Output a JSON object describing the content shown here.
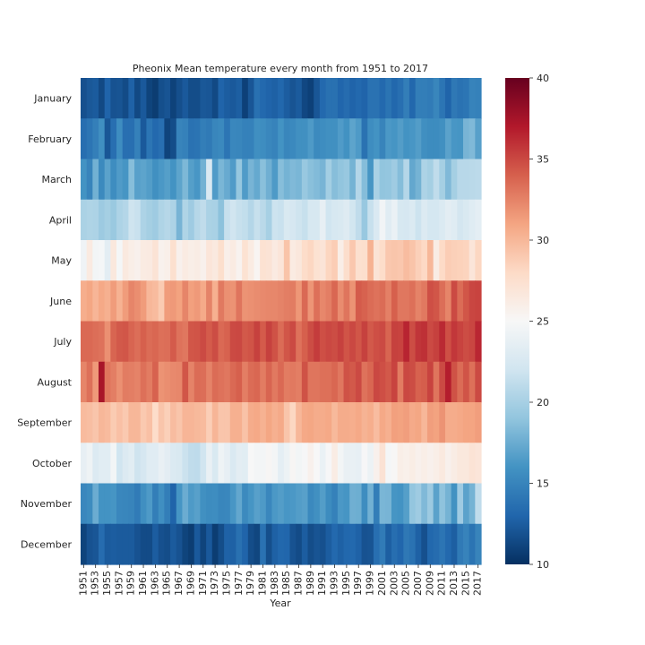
{
  "chart_data": {
    "type": "heatmap",
    "title": "Pheonix Mean temperature every month from 1951 to 2017",
    "xlabel": "Year",
    "ylabel": "",
    "rows": [
      "January",
      "February",
      "March",
      "April",
      "May",
      "June",
      "July",
      "August",
      "September",
      "October",
      "November",
      "December"
    ],
    "x_start": 1951,
    "x_end": 2017,
    "x_tick_step": 2,
    "colorbar": {
      "min": 10,
      "max": 40,
      "ticks": [
        10,
        15,
        20,
        25,
        30,
        35,
        40
      ],
      "colormap": "RdBu_r"
    },
    "approx_monthly_means": [
      11.5,
      14.5,
      17.5,
      21.5,
      26.5,
      31.5,
      34.5,
      33.5,
      29.5,
      24.0,
      16.0,
      11.5
    ],
    "series": [
      {
        "name": "January",
        "values": [
          11.8,
          12.2,
          12.4,
          11.4,
          12.9,
          11.9,
          12.0,
          11.5,
          12.8,
          11.4,
          12.3,
          11.1,
          10.7,
          11.7,
          12.0,
          11.0,
          11.7,
          12.3,
          11.6,
          11.6,
          12.2,
          12.1,
          11.4,
          12.9,
          12.5,
          12.3,
          12.6,
          10.9,
          12.1,
          13.7,
          13.2,
          12.9,
          12.7,
          13.1,
          12.5,
          12.0,
          12.4,
          11.3,
          10.9,
          12.1,
          13.2,
          13.7,
          13.7,
          13.0,
          13.4,
          12.9,
          13.2,
          12.9,
          13.8,
          13.8,
          13.2,
          13.9,
          13.1,
          13.6,
          14.6,
          13.1,
          14.6,
          14.6,
          14.4,
          15.1,
          14.0,
          12.9,
          14.2,
          13.8,
          14.0,
          14.9,
          14.8
        ]
      },
      {
        "name": "February",
        "values": [
          13.5,
          14.0,
          14.7,
          15.7,
          12.1,
          13.6,
          15.6,
          13.6,
          13.6,
          14.8,
          12.3,
          14.0,
          13.2,
          13.6,
          11.1,
          11.6,
          15.0,
          14.8,
          13.8,
          13.9,
          14.6,
          14.3,
          15.1,
          15.3,
          14.0,
          15.2,
          15.1,
          14.8,
          14.8,
          15.7,
          15.6,
          15.2,
          14.9,
          16.0,
          15.1,
          15.3,
          15.8,
          15.8,
          16.4,
          15.4,
          15.6,
          15.8,
          15.8,
          16.5,
          15.9,
          17.0,
          16.4,
          13.8,
          15.6,
          16.0,
          15.0,
          16.3,
          16.1,
          16.6,
          16.0,
          16.2,
          16.6,
          15.7,
          15.5,
          15.5,
          15.8,
          16.9,
          16.2,
          16.1,
          18.0,
          18.3,
          16.8
        ]
      },
      {
        "name": "March",
        "values": [
          16.0,
          15.0,
          17.8,
          15.4,
          16.9,
          15.6,
          16.5,
          16.1,
          18.6,
          16.8,
          17.0,
          16.6,
          15.8,
          16.3,
          16.7,
          16.0,
          17.0,
          18.2,
          16.7,
          16.2,
          17.8,
          22.7,
          16.5,
          18.1,
          17.4,
          16.5,
          19.2,
          16.5,
          18.0,
          17.3,
          18.7,
          17.7,
          16.4,
          18.6,
          17.9,
          18.3,
          18.1,
          19.3,
          18.7,
          18.4,
          18.0,
          19.8,
          18.6,
          19.0,
          19.3,
          17.9,
          20.6,
          18.5,
          16.1,
          20.1,
          19.0,
          19.1,
          19.6,
          18.5,
          20.6,
          17.2,
          17.9,
          20.3,
          19.9,
          21.2,
          19.9,
          18.3,
          19.9,
          20.8,
          20.8,
          20.9,
          21.0
        ]
      },
      {
        "name": "April",
        "values": [
          20.2,
          20.4,
          20.3,
          19.5,
          19.9,
          19.4,
          20.3,
          20.6,
          21.9,
          21.6,
          20.3,
          19.9,
          19.6,
          20.4,
          20.7,
          20.3,
          18.0,
          20.4,
          19.6,
          20.7,
          21.2,
          20.2,
          20.1,
          18.8,
          21.5,
          22.0,
          21.5,
          21.3,
          20.6,
          21.5,
          20.9,
          20.0,
          21.8,
          21.6,
          22.6,
          22.4,
          21.9,
          21.5,
          22.5,
          22.5,
          23.7,
          22.0,
          22.5,
          22.6,
          23.0,
          22.1,
          21.2,
          19.3,
          21.5,
          22.7,
          24.5,
          23.2,
          24.0,
          22.5,
          22.4,
          22.8,
          21.8,
          22.9,
          22.3,
          22.3,
          22.8,
          23.4,
          23.1,
          22.2,
          22.6,
          23.1,
          23.5
        ]
      },
      {
        "name": "May",
        "values": [
          24.4,
          26.4,
          24.6,
          24.8,
          23.4,
          26.6,
          24.8,
          26.5,
          26.0,
          25.7,
          26.3,
          26.4,
          27.1,
          25.6,
          25.9,
          27.5,
          25.7,
          26.3,
          26.0,
          26.2,
          25.7,
          26.9,
          26.5,
          27.6,
          25.9,
          26.3,
          25.5,
          27.3,
          26.3,
          25.3,
          27.3,
          27.1,
          26.4,
          26.9,
          29.3,
          26.3,
          26.7,
          27.8,
          28.2,
          27.3,
          27.0,
          28.3,
          28.8,
          26.0,
          27.7,
          29.1,
          27.5,
          27.6,
          30.3,
          27.1,
          27.8,
          29.1,
          29.2,
          29.1,
          29.7,
          29.3,
          28.6,
          28.1,
          30.0,
          26.2,
          28.0,
          28.8,
          28.6,
          28.5,
          28.4,
          26.9,
          28.2
        ]
      },
      {
        "name": "June",
        "values": [
          30.5,
          30.9,
          30.1,
          30.8,
          30.4,
          31.4,
          30.3,
          31.4,
          32.4,
          32.0,
          31.4,
          30.0,
          29.8,
          28.9,
          31.4,
          31.5,
          31.1,
          32.4,
          31.2,
          31.5,
          30.7,
          32.5,
          30.4,
          32.9,
          31.9,
          31.8,
          33.1,
          31.8,
          31.9,
          32.1,
          32.2,
          32.3,
          32.3,
          32.5,
          32.7,
          32.8,
          31.6,
          33.6,
          31.7,
          33.3,
          32.3,
          32.7,
          33.7,
          32.1,
          33.1,
          31.8,
          34.2,
          33.9,
          33.5,
          33.2,
          33.5,
          32.6,
          34.0,
          33.0,
          33.0,
          33.3,
          32.5,
          32.9,
          34.7,
          34.4,
          33.4,
          32.4,
          34.9,
          33.5,
          34.4,
          35.1,
          35.2
        ]
      },
      {
        "name": "July",
        "values": [
          33.6,
          33.6,
          33.4,
          33.2,
          31.9,
          33.8,
          34.3,
          34.4,
          33.8,
          33.4,
          34.0,
          33.5,
          33.7,
          33.3,
          33.4,
          34.2,
          33.2,
          33.0,
          34.4,
          34.5,
          34.9,
          34.2,
          34.8,
          33.6,
          33.9,
          34.9,
          35.0,
          34.3,
          34.5,
          35.3,
          34.2,
          35.3,
          34.6,
          33.5,
          34.4,
          34.9,
          33.2,
          34.0,
          34.8,
          35.5,
          34.7,
          35.0,
          34.8,
          35.3,
          34.5,
          35.0,
          34.4,
          35.3,
          34.3,
          34.7,
          34.9,
          33.8,
          35.3,
          35.2,
          36.5,
          34.8,
          35.8,
          36.0,
          34.9,
          35.3,
          36.3,
          34.7,
          35.7,
          35.2,
          34.8,
          35.1,
          36.4
        ]
      },
      {
        "name": "August",
        "values": [
          32.4,
          33.3,
          31.5,
          37.4,
          33.1,
          32.7,
          31.9,
          32.8,
          32.7,
          32.5,
          33.3,
          32.8,
          33.9,
          31.8,
          32.0,
          32.2,
          32.3,
          34.4,
          32.5,
          33.5,
          33.4,
          32.5,
          33.5,
          33.2,
          33.0,
          33.6,
          34.0,
          32.7,
          33.5,
          33.7,
          32.8,
          33.8,
          32.9,
          33.6,
          32.8,
          32.9,
          32.7,
          34.6,
          33.1,
          33.1,
          33.3,
          33.3,
          33.7,
          33.0,
          34.6,
          34.3,
          34.9,
          33.2,
          33.7,
          35.0,
          34.7,
          34.3,
          35.2,
          32.8,
          35.0,
          34.8,
          33.9,
          34.1,
          35.2,
          33.1,
          34.9,
          36.8,
          34.6,
          33.5,
          34.5,
          33.3,
          34.9
        ]
      },
      {
        "name": "September",
        "values": [
          29.8,
          29.6,
          29.2,
          30.0,
          29.8,
          28.9,
          29.5,
          29.0,
          30.0,
          30.0,
          29.0,
          29.5,
          27.8,
          29.2,
          28.6,
          29.7,
          29.2,
          30.1,
          30.1,
          29.9,
          29.8,
          28.7,
          30.1,
          29.2,
          29.2,
          30.4,
          30.4,
          29.4,
          30.6,
          30.8,
          30.3,
          30.9,
          30.4,
          30.7,
          29.2,
          28.2,
          30.0,
          30.8,
          30.9,
          30.6,
          30.6,
          30.8,
          29.9,
          30.6,
          30.6,
          30.5,
          30.8,
          30.2,
          30.5,
          29.7,
          30.8,
          30.4,
          31.2,
          31.1,
          31.3,
          30.7,
          30.9,
          30.0,
          31.3,
          31.1,
          31.8,
          30.6,
          30.6,
          30.8,
          31.0,
          31.0,
          31.3
        ]
      },
      {
        "name": "October",
        "values": [
          23.7,
          24.3,
          22.9,
          23.3,
          23.3,
          24.6,
          22.0,
          22.9,
          23.3,
          21.9,
          22.4,
          23.2,
          23.2,
          23.9,
          23.4,
          22.8,
          22.6,
          21.7,
          21.2,
          21.1,
          22.0,
          23.9,
          22.6,
          24.3,
          23.7,
          22.7,
          23.4,
          23.3,
          25.0,
          24.7,
          24.7,
          25.2,
          24.7,
          23.5,
          24.1,
          25.2,
          24.6,
          24.9,
          25.7,
          25.0,
          24.0,
          24.9,
          26.2,
          24.6,
          23.9,
          23.9,
          23.7,
          24.9,
          24.1,
          25.7,
          27.2,
          24.8,
          25.1,
          26.0,
          25.8,
          26.1,
          25.7,
          26.0,
          25.7,
          26.0,
          26.5,
          25.7,
          26.2,
          26.6,
          26.6,
          27.1,
          26.9
        ]
      },
      {
        "name": "November",
        "values": [
          15.2,
          15.5,
          17.5,
          16.0,
          16.0,
          16.1,
          15.2,
          15.1,
          15.0,
          14.4,
          15.7,
          16.4,
          14.6,
          15.7,
          14.6,
          12.9,
          16.1,
          17.5,
          16.4,
          16.8,
          15.8,
          15.5,
          15.6,
          15.1,
          15.2,
          16.2,
          17.2,
          15.4,
          16.1,
          16.8,
          16.4,
          15.2,
          16.3,
          16.6,
          16.2,
          16.3,
          16.6,
          16.8,
          15.3,
          15.8,
          16.6,
          15.5,
          14.8,
          16.3,
          16.1,
          17.7,
          17.6,
          15.6,
          17.8,
          14.6,
          18.1,
          18.0,
          16.1,
          16.0,
          16.7,
          19.1,
          19.6,
          18.3,
          19.5,
          16.9,
          18.9,
          17.9,
          15.9,
          19.6,
          16.9,
          17.9,
          21.2
        ]
      },
      {
        "name": "December",
        "values": [
          11.1,
          11.9,
          12.1,
          13.4,
          12.4,
          12.5,
          12.4,
          12.4,
          12.4,
          11.9,
          11.5,
          11.5,
          12.5,
          11.8,
          11.6,
          12.4,
          11.9,
          11.1,
          10.7,
          12.3,
          11.1,
          12.3,
          10.7,
          11.6,
          12.8,
          12.7,
          13.7,
          12.9,
          11.6,
          11.2,
          13.8,
          11.7,
          12.7,
          13.1,
          13.0,
          11.9,
          11.5,
          12.5,
          11.6,
          12.0,
          11.8,
          12.5,
          13.2,
          12.7,
          13.1,
          13.2,
          12.8,
          11.9,
          12.0,
          13.6,
          14.4,
          12.6,
          13.5,
          13.0,
          14.2,
          13.8,
          12.7,
          11.8,
          13.1,
          13.4,
          14.0,
          13.2,
          12.6,
          14.3,
          14.9,
          13.9,
          15.0
        ]
      }
    ]
  }
}
